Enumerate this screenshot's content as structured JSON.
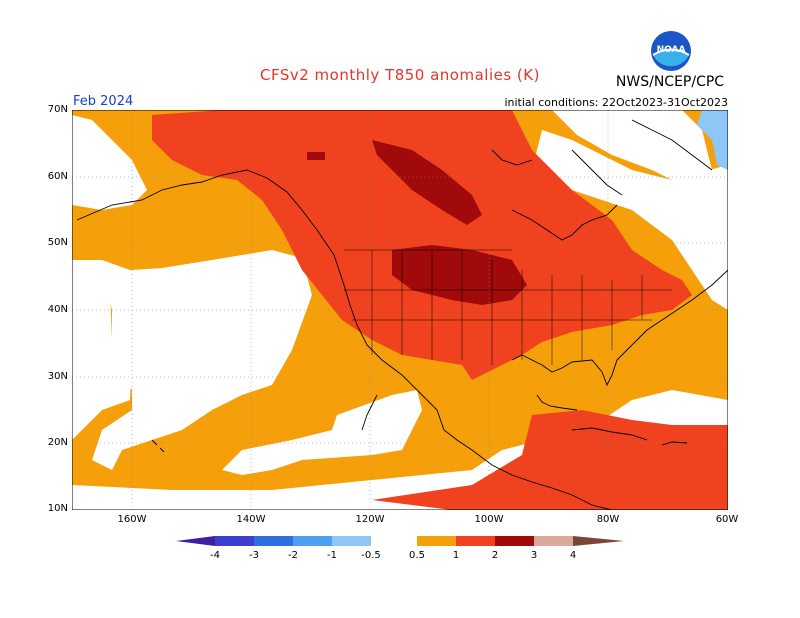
{
  "title": "CFSv2 monthly T850 anomalies (K)",
  "agency": "NWS/NCEP/CPC",
  "logo_text": "NOAA",
  "valid_month": "Feb 2024",
  "initial_conditions": "initial conditions: 22Oct2023-31Oct2023",
  "lat_labels": [
    "70N",
    "60N",
    "50N",
    "40N",
    "30N",
    "20N",
    "10N"
  ],
  "lon_labels": [
    "160W",
    "140W",
    "120W",
    "100W",
    "80W",
    "60W"
  ],
  "colorbar": {
    "ticks": [
      "-4",
      "-3",
      "-2",
      "-1",
      "-0.5",
      "0.5",
      "1",
      "2",
      "3",
      "4"
    ],
    "colors": [
      "#3d1fa3",
      "#3c3fcf",
      "#2f6fe0",
      "#4d9ff0",
      "#8ec7f5",
      "#ffffff",
      "#f5a00a",
      "#f0421e",
      "#a10a0a",
      "#d9a99a",
      "#7b4636"
    ]
  }
}
